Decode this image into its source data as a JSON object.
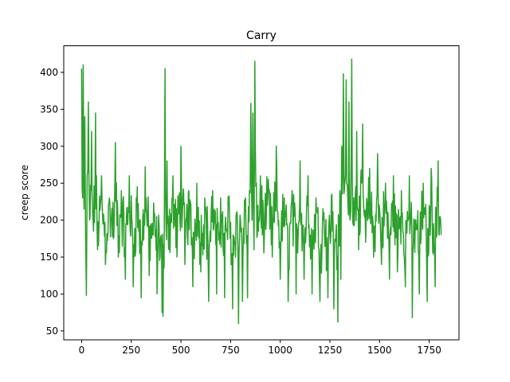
{
  "chart_data": {
    "type": "line",
    "title": "Carry",
    "xlabel": "",
    "ylabel": "creep score",
    "xlim": [
      -90,
      1900
    ],
    "ylim": [
      38,
      436
    ],
    "xticks": [
      0,
      250,
      500,
      750,
      1000,
      1250,
      1500,
      1750
    ],
    "yticks": [
      50,
      100,
      150,
      200,
      250,
      300,
      350,
      400
    ],
    "grid": false,
    "series_color": "#2ca02c",
    "series": [
      {
        "anchors": [
          [
            0,
            405
          ],
          [
            5,
            230
          ],
          [
            8,
            410
          ],
          [
            12,
            215
          ],
          [
            16,
            340
          ],
          [
            20,
            180
          ],
          [
            24,
            98
          ],
          [
            28,
            260
          ],
          [
            34,
            360
          ],
          [
            40,
            200
          ],
          [
            50,
            320
          ],
          [
            60,
            185
          ],
          [
            70,
            345
          ],
          [
            80,
            160
          ],
          [
            100,
            260
          ],
          [
            120,
            140
          ],
          [
            140,
            230
          ],
          [
            160,
            175
          ],
          [
            170,
            305
          ],
          [
            185,
            150
          ],
          [
            200,
            240
          ],
          [
            220,
            120
          ],
          [
            240,
            260
          ],
          [
            260,
            110
          ],
          [
            280,
            245
          ],
          [
            300,
            95
          ],
          [
            320,
            272
          ],
          [
            340,
            125
          ],
          [
            360,
            180
          ],
          [
            380,
            100
          ],
          [
            395,
            150
          ],
          [
            405,
            75
          ],
          [
            410,
            70
          ],
          [
            415,
            135
          ],
          [
            420,
            405
          ],
          [
            425,
            190
          ],
          [
            430,
            280
          ],
          [
            440,
            160
          ],
          [
            460,
            260
          ],
          [
            480,
            150
          ],
          [
            500,
            300
          ],
          [
            520,
            140
          ],
          [
            540,
            240
          ],
          [
            560,
            110
          ],
          [
            580,
            250
          ],
          [
            600,
            130
          ],
          [
            620,
            230
          ],
          [
            640,
            90
          ],
          [
            660,
            240
          ],
          [
            680,
            100
          ],
          [
            700,
            230
          ],
          [
            720,
            95
          ],
          [
            740,
            220
          ],
          [
            760,
            80
          ],
          [
            780,
            210
          ],
          [
            790,
            60
          ],
          [
            800,
            200
          ],
          [
            810,
            90
          ],
          [
            825,
            230
          ],
          [
            835,
            95
          ],
          [
            845,
            240
          ],
          [
            852,
            358
          ],
          [
            858,
            200
          ],
          [
            862,
            345
          ],
          [
            868,
            160
          ],
          [
            872,
            415
          ],
          [
            880,
            250
          ],
          [
            890,
            185
          ],
          [
            900,
            260
          ],
          [
            920,
            175
          ],
          [
            940,
            255
          ],
          [
            960,
            150
          ],
          [
            980,
            300
          ],
          [
            1000,
            120
          ],
          [
            1020,
            230
          ],
          [
            1040,
            90
          ],
          [
            1060,
            240
          ],
          [
            1080,
            100
          ],
          [
            1100,
            280
          ],
          [
            1120,
            120
          ],
          [
            1140,
            260
          ],
          [
            1160,
            100
          ],
          [
            1180,
            230
          ],
          [
            1200,
            90
          ],
          [
            1220,
            210
          ],
          [
            1240,
            95
          ],
          [
            1260,
            235
          ],
          [
            1270,
            80
          ],
          [
            1280,
            180
          ],
          [
            1290,
            62
          ],
          [
            1300,
            240
          ],
          [
            1305,
            120
          ],
          [
            1310,
            300
          ],
          [
            1318,
            398
          ],
          [
            1325,
            250
          ],
          [
            1332,
            390
          ],
          [
            1340,
            230
          ],
          [
            1346,
            360
          ],
          [
            1352,
            200
          ],
          [
            1360,
            418
          ],
          [
            1370,
            230
          ],
          [
            1385,
            320
          ],
          [
            1400,
            180
          ],
          [
            1415,
            330
          ],
          [
            1430,
            170
          ],
          [
            1450,
            270
          ],
          [
            1470,
            150
          ],
          [
            1490,
            290
          ],
          [
            1510,
            140
          ],
          [
            1530,
            250
          ],
          [
            1550,
            120
          ],
          [
            1570,
            260
          ],
          [
            1590,
            130
          ],
          [
            1610,
            240
          ],
          [
            1630,
            110
          ],
          [
            1650,
            260
          ],
          [
            1665,
            68
          ],
          [
            1680,
            200
          ],
          [
            1700,
            100
          ],
          [
            1720,
            250
          ],
          [
            1740,
            90
          ],
          [
            1760,
            270
          ],
          [
            1780,
            110
          ],
          [
            1795,
            280
          ],
          [
            1800,
            180
          ],
          [
            1805,
            205
          ],
          [
            1810,
            180
          ]
        ]
      }
    ]
  }
}
